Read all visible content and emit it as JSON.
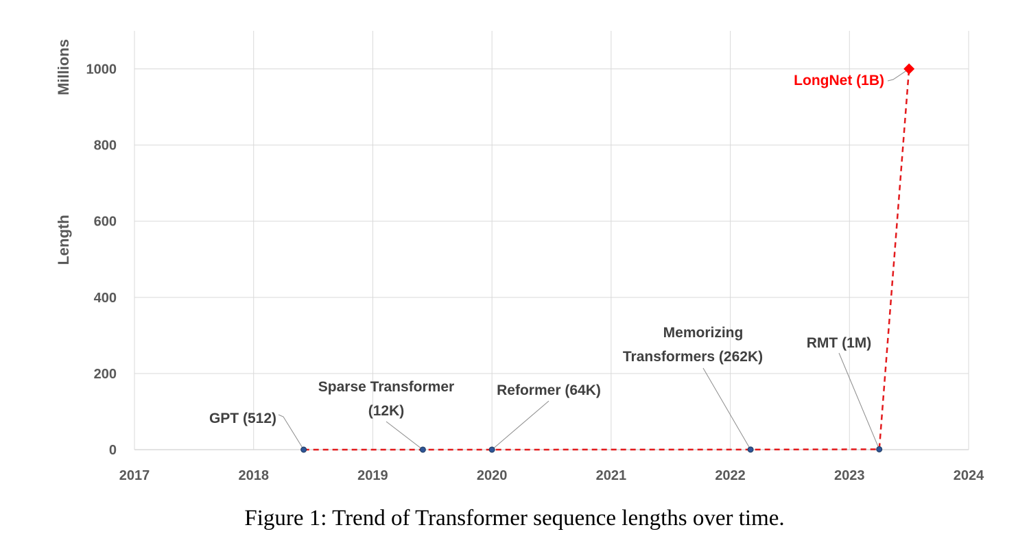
{
  "figure": {
    "caption": "Figure 1: Trend of Transformer sequence lengths over time."
  },
  "chart_data": {
    "type": "line",
    "title": "",
    "xlabel": "",
    "ylabel": "Length",
    "ylabel_unit": "Millions",
    "xlim": [
      2017,
      2024
    ],
    "ylim": [
      0,
      1100
    ],
    "x_ticks": [
      2017,
      2018,
      2019,
      2020,
      2021,
      2022,
      2023,
      2024
    ],
    "y_ticks": [
      0,
      200,
      400,
      600,
      800,
      1000
    ],
    "grid": true,
    "legend": "none",
    "series": [
      {
        "color": "#e31a1c",
        "line_style": "dashed",
        "points": [
          {
            "label": "GPT (512)",
            "x": 2018.42,
            "y": 0.000512,
            "marker": "circle",
            "color": "#2f5597"
          },
          {
            "label": "Sparse Transformer (12K)",
            "x": 2019.42,
            "y": 0.012,
            "marker": "circle",
            "color": "#2f5597"
          },
          {
            "label": "Reformer (64K)",
            "x": 2020.0,
            "y": 0.064,
            "marker": "circle",
            "color": "#2f5597"
          },
          {
            "label": "Memorizing Transformers (262K)",
            "x": 2022.17,
            "y": 0.262,
            "marker": "circle",
            "color": "#2f5597"
          },
          {
            "label": "RMT (1M)",
            "x": 2023.25,
            "y": 1,
            "marker": "circle",
            "color": "#2f5597"
          },
          {
            "label": "LongNet (1B)",
            "x": 2023.5,
            "y": 1000,
            "marker": "diamond",
            "color": "#ff0000"
          }
        ]
      }
    ]
  }
}
